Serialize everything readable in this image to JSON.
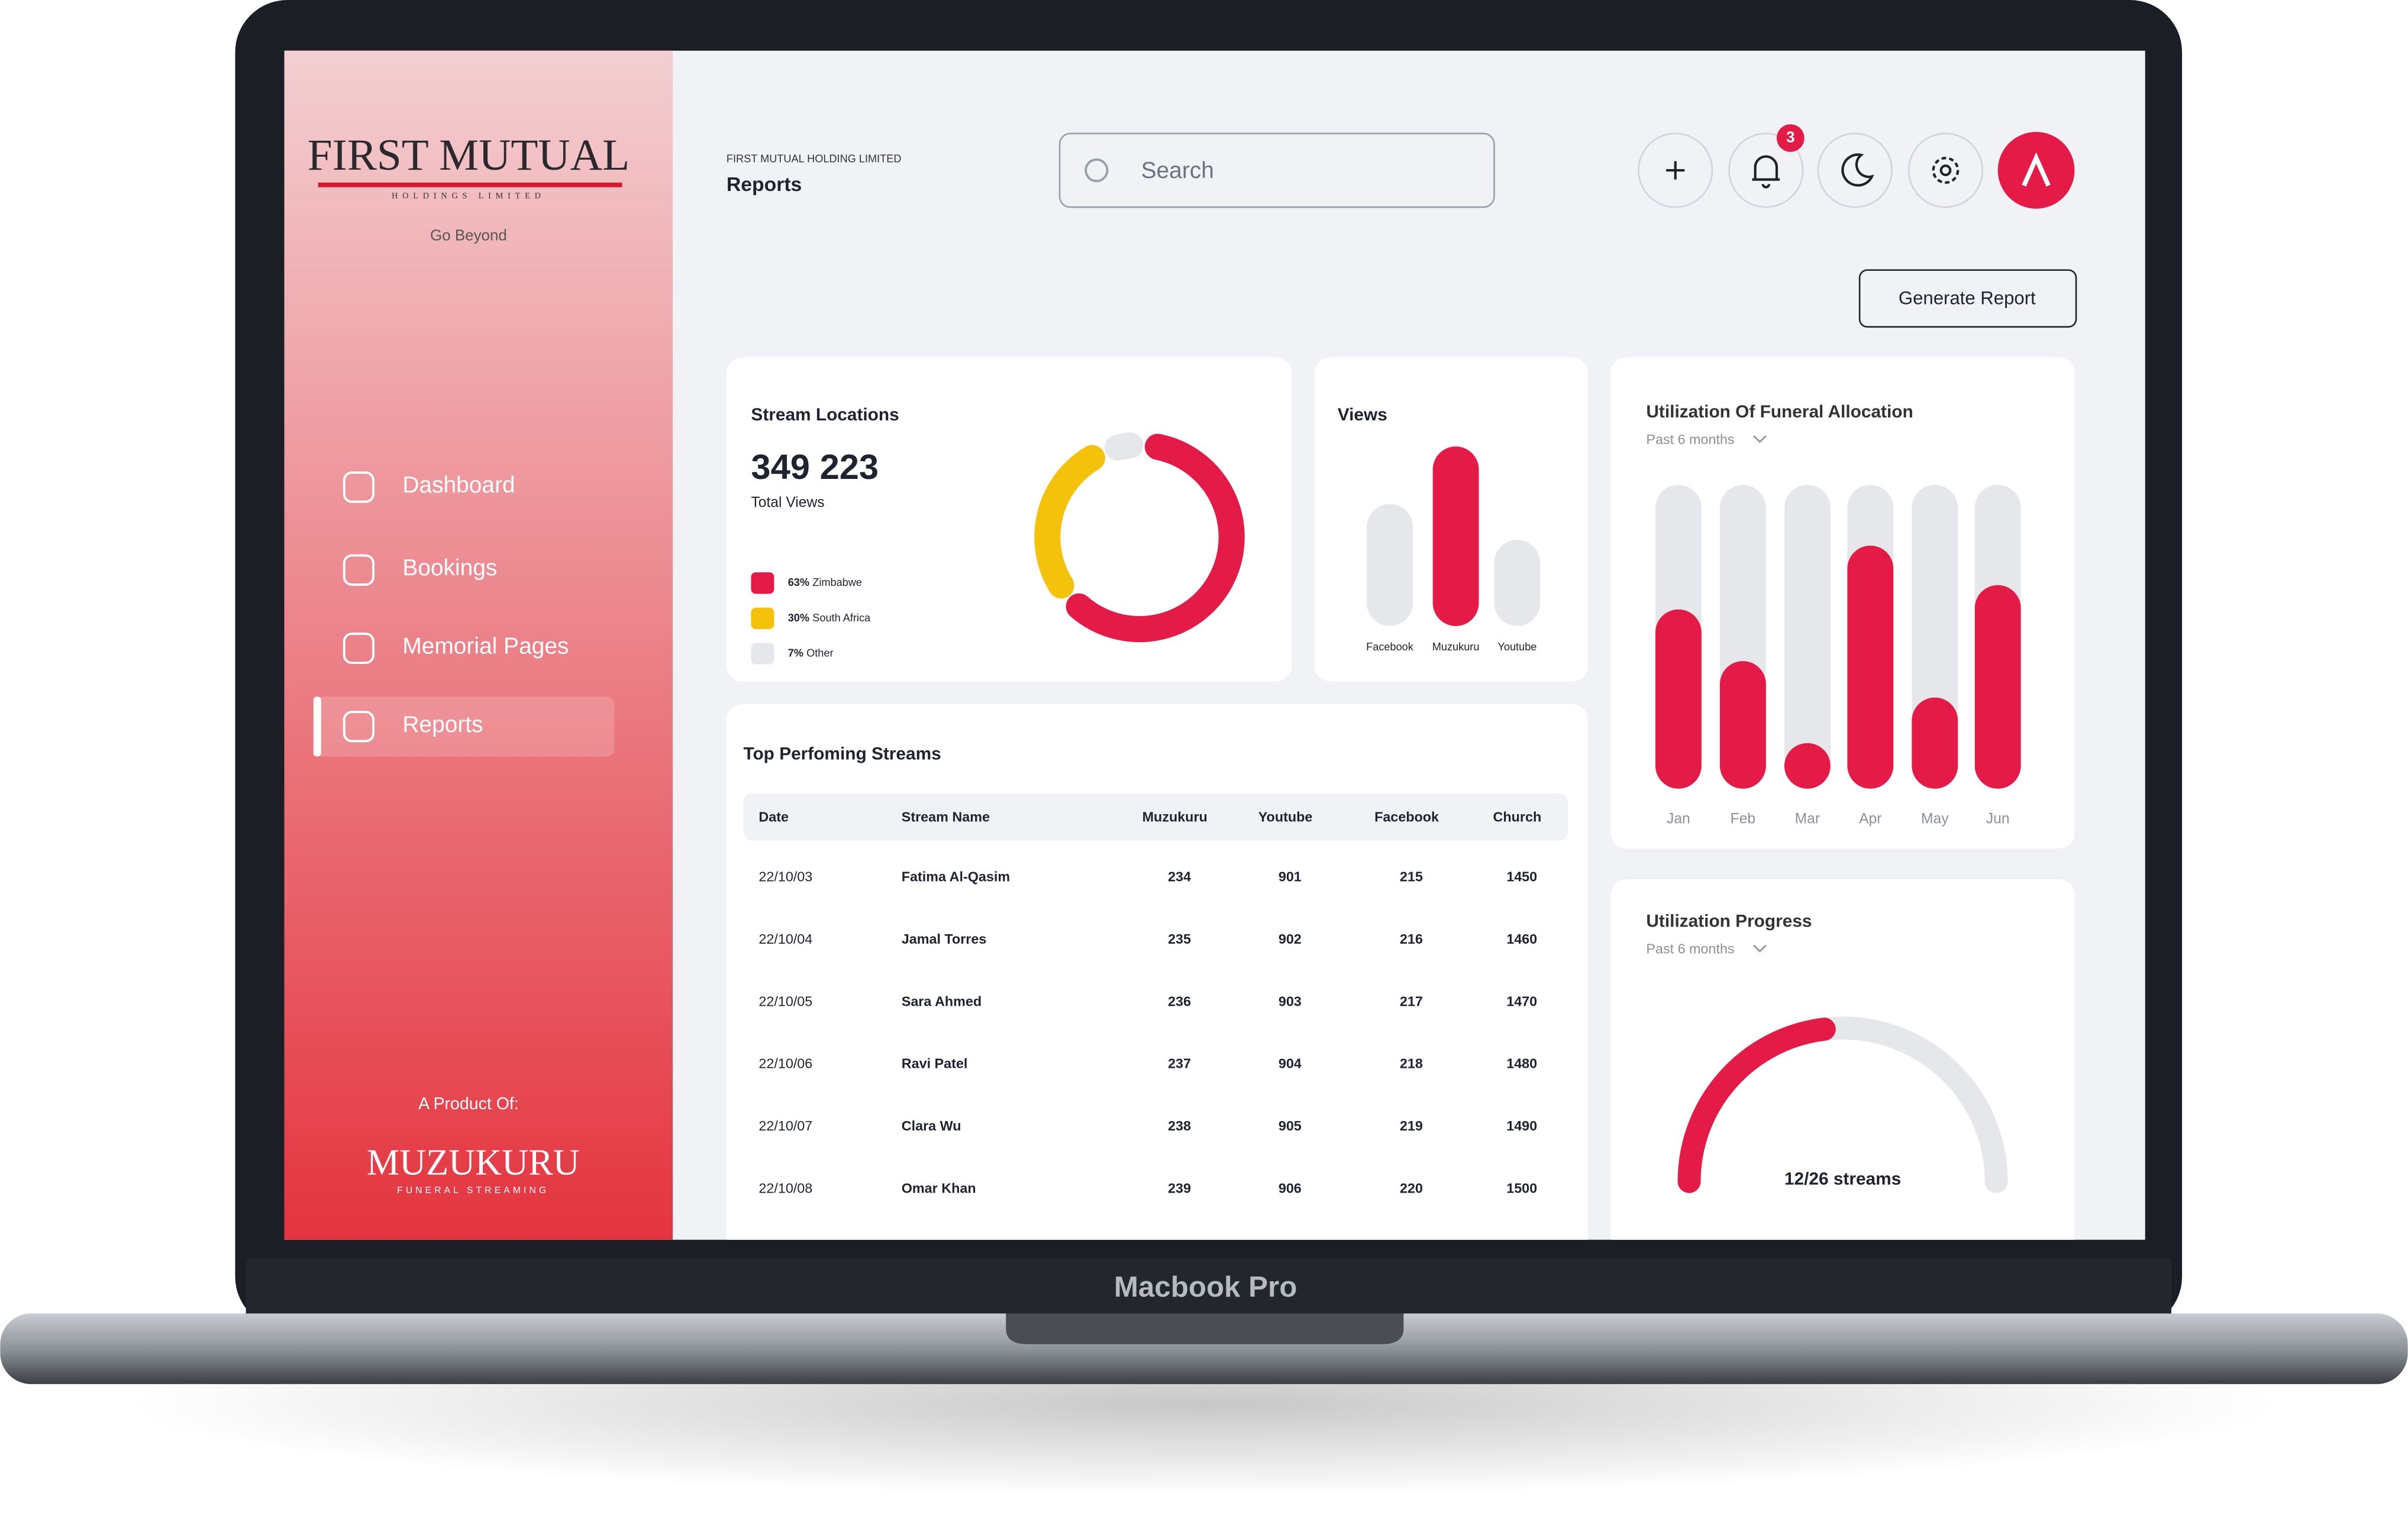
{
  "device_label": "Macbook Pro",
  "sidebar": {
    "logo_title": "FIRST MUTUAL",
    "logo_subtitle": "HOLDINGS LIMITED",
    "tagline": "Go Beyond",
    "nav": [
      "Dashboard",
      "Bookings",
      "Memorial Pages",
      "Reports"
    ],
    "active": 3,
    "product_of": "A Product Of:",
    "brand": "MUZUKURU",
    "brand_subtitle": "FUNERAL STREAMING"
  },
  "header": {
    "company": "FIRST MUTUAL HOLDING LIMITED",
    "page_title": "Reports",
    "search_placeholder": "Search",
    "notification_count": 3,
    "generate_button": "Generate Report"
  },
  "stream_locations": {
    "title": "Stream Locations",
    "total_views": "349 223",
    "total_label": "Total Views",
    "segments": [
      {
        "value": 63,
        "value_label": "63%",
        "label": "Zimbabwe",
        "color": "#e31b46"
      },
      {
        "value": 30,
        "value_label": "30%",
        "label": "South Africa",
        "color": "#f5c20b"
      },
      {
        "value": 7,
        "value_label": "7%",
        "label": "Other",
        "color": "#e5e7eb"
      }
    ]
  },
  "views": {
    "type": "bar",
    "title": "Views",
    "categories": [
      "Facebook",
      "Muzukuru",
      "Youtube"
    ],
    "values": [
      68,
      100,
      48
    ],
    "colors": [
      "#e5e7eb",
      "#e31b46",
      "#e5e7eb"
    ],
    "ylim": [
      0,
      100
    ]
  },
  "funeral_allocation": {
    "type": "bar",
    "title": "Utilization Of Funeral Allocation",
    "period": "Past 6 months",
    "categories": [
      "Jan",
      "Feb",
      "Mar",
      "Apr",
      "May",
      "Jun"
    ],
    "values": [
      59,
      42,
      15,
      80,
      30,
      67
    ],
    "color": "#e31b46",
    "track_color": "#e5e7eb",
    "ylim": [
      0,
      100
    ]
  },
  "top_streams": {
    "title": "Top Perfoming Streams",
    "columns": [
      "Date",
      "Stream Name",
      "Muzukuru",
      "Youtube",
      "Facebook",
      "Church"
    ],
    "rows": [
      [
        "22/10/03",
        "Fatima Al-Qasim",
        234,
        901,
        215,
        1450
      ],
      [
        "22/10/04",
        "Jamal Torres",
        235,
        902,
        216,
        1460
      ],
      [
        "22/10/05",
        "Sara Ahmed",
        236,
        903,
        217,
        1470
      ],
      [
        "22/10/06",
        "Ravi Patel",
        237,
        904,
        218,
        1480
      ],
      [
        "22/10/07",
        "Clara Wu",
        238,
        905,
        219,
        1490
      ],
      [
        "22/10/08",
        "Omar Khan",
        239,
        906,
        220,
        1500
      ]
    ]
  },
  "utilization_progress": {
    "title": "Utilization Progress",
    "period": "Past 6 months",
    "value": 12,
    "max": 26,
    "label": "12/26 streams",
    "color": "#e31b46",
    "track_color": "#e5e7eb"
  }
}
